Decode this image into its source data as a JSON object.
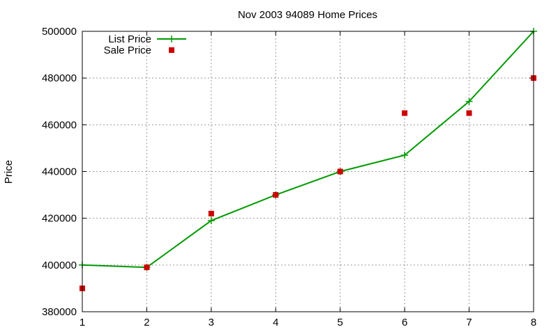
{
  "chart_data": {
    "type": "line",
    "title": "Nov 2003 94089 Home Prices",
    "xlabel": "",
    "ylabel": "Price",
    "x": [
      1,
      2,
      3,
      4,
      5,
      6,
      7,
      8
    ],
    "xlim": [
      1,
      8
    ],
    "ylim": [
      380000,
      500000
    ],
    "xticks": [
      "1",
      "2",
      "3",
      "4",
      "5",
      "6",
      "7",
      "8"
    ],
    "yticks": [
      "380000",
      "400000",
      "420000",
      "440000",
      "460000",
      "480000",
      "500000"
    ],
    "grid": true,
    "legend_position": "top-left",
    "series": [
      {
        "name": "List Price",
        "style": "line+cross",
        "color": "#009900",
        "values": [
          400000,
          399000,
          419000,
          430000,
          440000,
          447000,
          470000,
          500000
        ]
      },
      {
        "name": "Sale Price",
        "style": "square",
        "color": "#cc0000",
        "values": [
          390000,
          399000,
          422000,
          430000,
          440000,
          465000,
          465000,
          480000
        ]
      }
    ]
  }
}
